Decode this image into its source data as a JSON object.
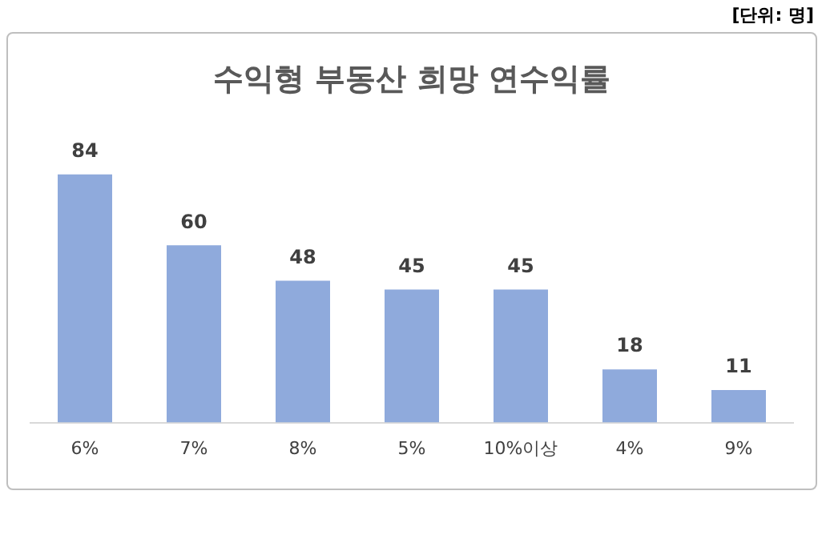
{
  "chart_data": {
    "type": "bar",
    "title": "수익형 부동산 희망 연수익률",
    "categories": [
      "6%",
      "7%",
      "8%",
      "5%",
      "10%이상",
      "4%",
      "9%"
    ],
    "values": [
      84,
      60,
      48,
      45,
      45,
      18,
      11
    ],
    "color": "#8faadc",
    "data_labels": true,
    "grid": false,
    "legend": false,
    "annotations": [
      "[단위: 명]"
    ]
  }
}
